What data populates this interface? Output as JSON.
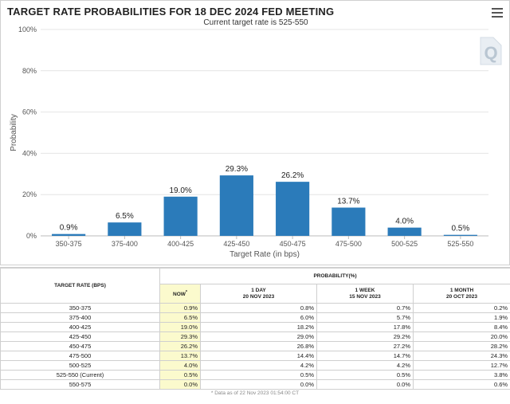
{
  "header": {
    "title": "TARGET RATE PROBABILITIES FOR 18 DEC 2024 FED MEETING",
    "subtitle": "Current target rate is 525-550",
    "menu_icon": "hamburger-menu-icon",
    "logo_icon": "cme-q-logo-icon"
  },
  "chart_data": {
    "type": "bar",
    "title": "TARGET RATE PROBABILITIES FOR 18 DEC 2024 FED MEETING",
    "subtitle": "Current target rate is 525-550",
    "categories": [
      "350-375",
      "375-400",
      "400-425",
      "425-450",
      "450-475",
      "475-500",
      "500-525",
      "525-550"
    ],
    "values": [
      0.9,
      6.5,
      19.0,
      29.3,
      26.2,
      13.7,
      4.0,
      0.5
    ],
    "data_labels": [
      "0.9%",
      "6.5%",
      "19.0%",
      "29.3%",
      "26.2%",
      "13.7%",
      "4.0%",
      "0.5%"
    ],
    "xlabel": "Target Rate (in bps)",
    "ylabel": "Probability",
    "ylim": [
      0,
      100
    ],
    "yticks": [
      0,
      20,
      40,
      60,
      80,
      100
    ],
    "ytick_labels": [
      "0%",
      "20%",
      "40%",
      "60%",
      "80%",
      "100%"
    ],
    "bar_color": "#2b7bba",
    "grid": true
  },
  "table": {
    "rate_header": "TARGET RATE (BPS)",
    "prob_header": "PROBABILITY(%)",
    "columns": [
      {
        "label": "NOW",
        "sup": "*",
        "date": ""
      },
      {
        "label": "1 DAY",
        "sup": "",
        "date": "20 NOV 2023"
      },
      {
        "label": "1 WEEK",
        "sup": "",
        "date": "15 NOV 2023"
      },
      {
        "label": "1 MONTH",
        "sup": "",
        "date": "20 OCT 2023"
      }
    ],
    "rows": [
      {
        "rate": "350-375",
        "now": "0.9%",
        "day": "0.8%",
        "week": "0.7%",
        "month": "0.2%"
      },
      {
        "rate": "375-400",
        "now": "6.5%",
        "day": "6.0%",
        "week": "5.7%",
        "month": "1.9%"
      },
      {
        "rate": "400-425",
        "now": "19.0%",
        "day": "18.2%",
        "week": "17.8%",
        "month": "8.4%"
      },
      {
        "rate": "425-450",
        "now": "29.3%",
        "day": "29.0%",
        "week": "29.2%",
        "month": "20.0%"
      },
      {
        "rate": "450-475",
        "now": "26.2%",
        "day": "26.8%",
        "week": "27.2%",
        "month": "28.2%"
      },
      {
        "rate": "475-500",
        "now": "13.7%",
        "day": "14.4%",
        "week": "14.7%",
        "month": "24.3%"
      },
      {
        "rate": "500-525",
        "now": "4.0%",
        "day": "4.2%",
        "week": "4.2%",
        "month": "12.7%"
      },
      {
        "rate": "525-550 (Current)",
        "now": "0.5%",
        "day": "0.5%",
        "week": "0.5%",
        "month": "3.8%"
      },
      {
        "rate": "550-575",
        "now": "0.0%",
        "day": "0.0%",
        "week": "0.0%",
        "month": "0.6%"
      }
    ],
    "footnote": "* Data as of 22 Nov 2023 01:54:00 CT"
  }
}
